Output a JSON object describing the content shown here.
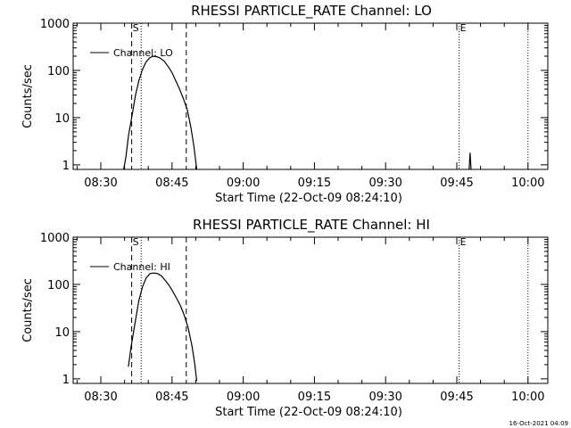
{
  "footer": {
    "stamp": "16-Oct-2021 04:09"
  },
  "chart_data": [
    {
      "type": "line",
      "title": "RHESSI PARTICLE_RATE Channel: LO",
      "xlabel": "Start Time (22-Oct-09 08:24:10)",
      "ylabel": "Counts/sec",
      "yscale": "log",
      "ylim": [
        0.8,
        1000
      ],
      "xlim_minutes": [
        24.17,
        124.17
      ],
      "xticks": [
        {
          "minutes": 30,
          "label": "08:30"
        },
        {
          "minutes": 45,
          "label": "08:45"
        },
        {
          "minutes": 60,
          "label": "09:00"
        },
        {
          "minutes": 75,
          "label": "09:15"
        },
        {
          "minutes": 90,
          "label": "09:30"
        },
        {
          "minutes": 105,
          "label": "09:45"
        },
        {
          "minutes": 120,
          "label": "10:00"
        }
      ],
      "yticks": [
        {
          "value": 1,
          "label": "1"
        },
        {
          "value": 10,
          "label": "10"
        },
        {
          "value": 100,
          "label": "100"
        },
        {
          "value": 1000,
          "label": "1000"
        }
      ],
      "legend": {
        "label": "Channel: LO",
        "position": "top-left"
      },
      "markers": [
        {
          "minutes": 36.5,
          "style": "dashed",
          "label": "S"
        },
        {
          "minutes": 38.5,
          "style": "dotted",
          "label": ""
        },
        {
          "minutes": 48.0,
          "style": "dashed",
          "label": ""
        },
        {
          "minutes": 105.5,
          "style": "dotted",
          "label": "E"
        },
        {
          "minutes": 120.0,
          "style": "dotted",
          "label": ""
        }
      ],
      "series": [
        {
          "points": [
            [
              34.8,
              0.8
            ],
            [
              35.3,
              1.5
            ],
            [
              35.8,
              4
            ],
            [
              36.5,
              10
            ],
            [
              37.3,
              30
            ],
            [
              38.0,
              60
            ],
            [
              38.7,
              100
            ],
            [
              39.5,
              150
            ],
            [
              40.3,
              185
            ],
            [
              41.0,
              200
            ],
            [
              41.8,
              195
            ],
            [
              42.6,
              180
            ],
            [
              43.4,
              155
            ],
            [
              44.2,
              120
            ],
            [
              45.0,
              90
            ],
            [
              45.8,
              60
            ],
            [
              46.6,
              40
            ],
            [
              47.4,
              25
            ],
            [
              48.2,
              15
            ],
            [
              49.0,
              6
            ],
            [
              49.6,
              2.5
            ],
            [
              50.0,
              1.2
            ],
            [
              50.2,
              0.8
            ]
          ]
        },
        {
          "points": [
            [
              107.6,
              0.8
            ],
            [
              107.8,
              1.8
            ],
            [
              108.0,
              0.8
            ]
          ]
        }
      ]
    },
    {
      "type": "line",
      "title": "RHESSI PARTICLE_RATE Channel: HI",
      "xlabel": "Start Time (22-Oct-09 08:24:10)",
      "ylabel": "Counts/sec",
      "yscale": "log",
      "ylim": [
        0.8,
        1000
      ],
      "xlim_minutes": [
        24.17,
        124.17
      ],
      "xticks": [
        {
          "minutes": 30,
          "label": "08:30"
        },
        {
          "minutes": 45,
          "label": "08:45"
        },
        {
          "minutes": 60,
          "label": "09:00"
        },
        {
          "minutes": 75,
          "label": "09:15"
        },
        {
          "minutes": 90,
          "label": "09:30"
        },
        {
          "minutes": 105,
          "label": "09:45"
        },
        {
          "minutes": 120,
          "label": "10:00"
        }
      ],
      "yticks": [
        {
          "value": 1,
          "label": "1"
        },
        {
          "value": 10,
          "label": "10"
        },
        {
          "value": 100,
          "label": "100"
        },
        {
          "value": 1000,
          "label": "1000"
        }
      ],
      "legend": {
        "label": "Channel: HI",
        "position": "top-left"
      },
      "markers": [
        {
          "minutes": 36.5,
          "style": "dashed",
          "label": "S"
        },
        {
          "minutes": 38.5,
          "style": "dotted",
          "label": ""
        },
        {
          "minutes": 48.0,
          "style": "dashed",
          "label": ""
        },
        {
          "minutes": 105.5,
          "style": "dotted",
          "label": "E"
        },
        {
          "minutes": 120.0,
          "style": "dotted",
          "label": ""
        }
      ],
      "series": [
        {
          "points": [
            [
              35.8,
              1.8
            ],
            [
              36.4,
              5
            ],
            [
              37.2,
              15
            ],
            [
              38.0,
              45
            ],
            [
              38.8,
              90
            ],
            [
              39.6,
              140
            ],
            [
              40.4,
              170
            ],
            [
              41.2,
              175
            ],
            [
              42.0,
              168
            ],
            [
              42.8,
              150
            ],
            [
              43.6,
              120
            ],
            [
              44.4,
              95
            ],
            [
              45.2,
              70
            ],
            [
              46.0,
              50
            ],
            [
              46.8,
              35
            ],
            [
              47.6,
              22
            ],
            [
              48.4,
              12
            ],
            [
              49.2,
              5
            ],
            [
              49.8,
              2
            ],
            [
              50.2,
              0.9
            ]
          ]
        }
      ]
    }
  ]
}
